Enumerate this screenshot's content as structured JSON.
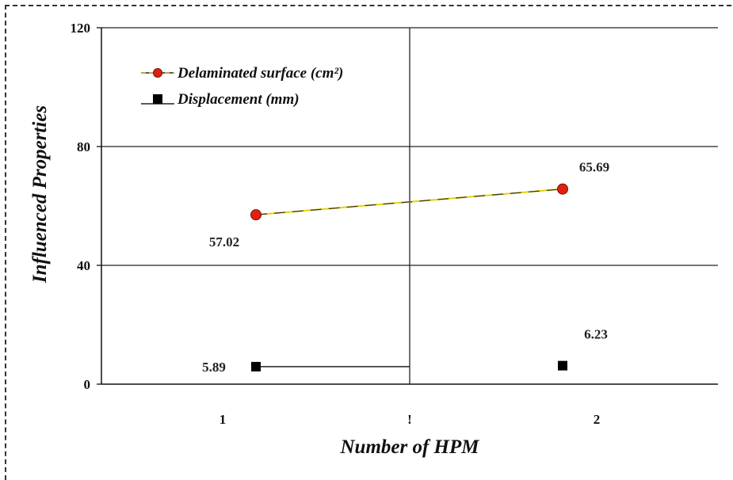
{
  "chart_data": {
    "type": "line",
    "title": "",
    "xlabel": "Number of HPM",
    "ylabel": "Influenced Properties",
    "ylim": [
      0,
      120
    ],
    "yticks": [
      "0",
      "40",
      "80",
      "120"
    ],
    "xticks": [
      "1",
      "!",
      "2"
    ],
    "categories": [
      "1",
      "2"
    ],
    "grid": true,
    "legend_position": "top-left",
    "series": [
      {
        "name": "Delaminated surface (cm²)",
        "values": [
          57.02,
          65.69
        ],
        "labels": [
          "57.02",
          "65.69"
        ],
        "marker": "circle",
        "marker_color": "#e02010",
        "line_color": "#c9b400"
      },
      {
        "name": "Displacement (mm)",
        "values": [
          5.89,
          6.23
        ],
        "labels": [
          "5.89",
          "6.23"
        ],
        "marker": "square",
        "marker_color": "#000000",
        "line_color": "#000000"
      }
    ]
  }
}
